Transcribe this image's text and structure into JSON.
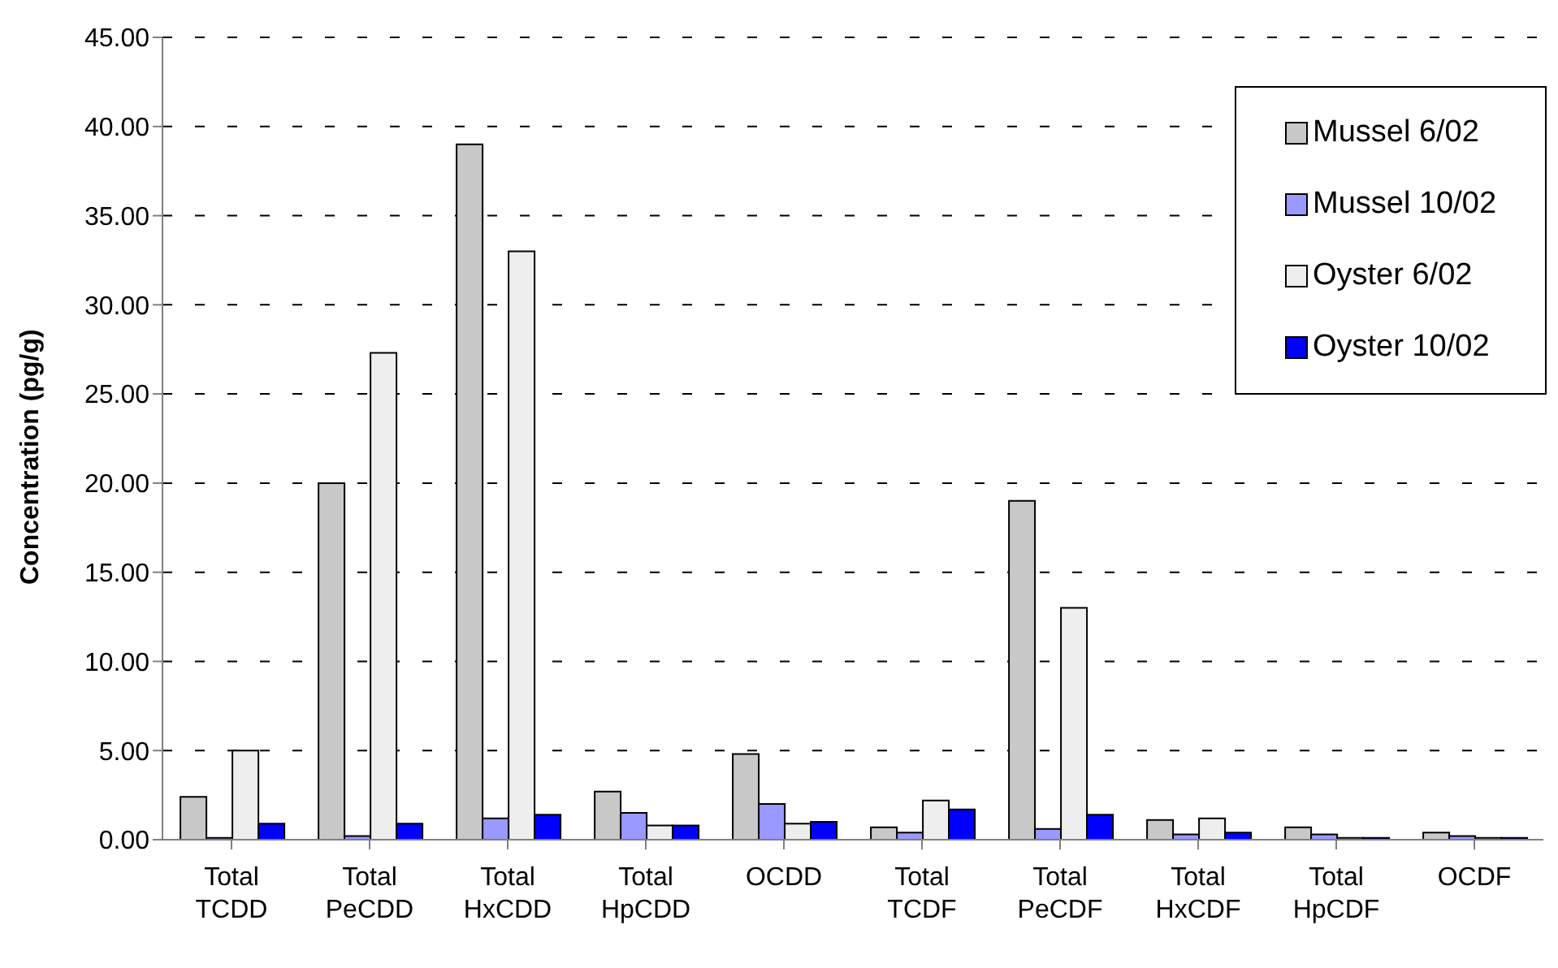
{
  "chart_data": {
    "type": "bar",
    "ylabel": "Concentration (pg/g)",
    "categories": [
      "Total TCDD",
      "Total PeCDD",
      "Total HxCDD",
      "Total HpCDD",
      "OCDD",
      "Total TCDF",
      "Total PeCDF",
      "Total HxCDF",
      "Total HpCDF",
      "OCDF"
    ],
    "series": [
      {
        "name": "Mussel 6/02",
        "color": "#c8c8c8",
        "values": [
          2.4,
          20,
          39,
          2.7,
          4.8,
          0.7,
          19,
          1.1,
          0.7,
          0.4
        ]
      },
      {
        "name": "Mussel 10/02",
        "color": "#9999ff",
        "values": [
          0.1,
          0.2,
          1.2,
          1.5,
          2,
          0.4,
          0.6,
          0.3,
          0.3,
          0.2
        ]
      },
      {
        "name": "Oyster 6/02",
        "color": "#eeeeee",
        "values": [
          5,
          27.3,
          33,
          0.8,
          0.9,
          2.2,
          13,
          1.2,
          0.1,
          0.1
        ]
      },
      {
        "name": "Oyster 10/02",
        "color": "#0000ff",
        "values": [
          0.9,
          0.9,
          1.4,
          0.8,
          1,
          1.7,
          1.4,
          0.4,
          0.1,
          0.1
        ]
      }
    ],
    "ylim": [
      0,
      45
    ],
    "yticks": [
      {
        "value": 0,
        "label": "0.00"
      },
      {
        "value": 5,
        "label": "5.00"
      },
      {
        "value": 10,
        "label": "10.00"
      },
      {
        "value": 15,
        "label": "15.00"
      },
      {
        "value": 20,
        "label": "20.00"
      },
      {
        "value": 25,
        "label": "25.00"
      },
      {
        "value": 30,
        "label": "30.00"
      },
      {
        "value": 35,
        "label": "35.00"
      },
      {
        "value": 40,
        "label": "40.00"
      },
      {
        "value": 45,
        "label": "45.00"
      }
    ],
    "grid": "y",
    "legend": "top right"
  }
}
